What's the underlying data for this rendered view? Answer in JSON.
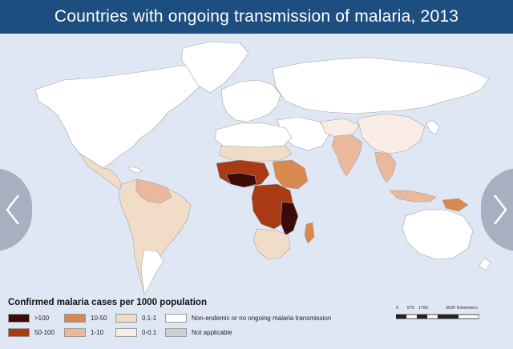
{
  "header": {
    "title": "Countries with ongoing transmission of malaria, 2013"
  },
  "nav": {
    "prev_icon": "chevron-left-icon",
    "next_icon": "chevron-right-icon"
  },
  "legend": {
    "title": "Confirmed malaria cases per 1000 population",
    "items": [
      {
        "label": ">100",
        "color": "#3d0a0a"
      },
      {
        "label": "10-50",
        "color": "#d9884f"
      },
      {
        "label": "0.1-1",
        "color": "#f1dcc8"
      },
      {
        "label": "Non-endemic or no ongoing malaria transmission",
        "color": "#ffffff"
      },
      {
        "label": "50-100",
        "color": "#a83a14"
      },
      {
        "label": "1-10",
        "color": "#eab89a"
      },
      {
        "label": "0-0.1",
        "color": "#f8ece4"
      },
      {
        "label": "Not applicable",
        "color": "#cfcfcf"
      }
    ]
  },
  "scale": {
    "ticks": [
      "0",
      "875",
      "1750",
      "3500 Kilometers"
    ]
  },
  "colors": {
    "ocean": "#dfe7f5",
    "header": "#1d4e80",
    "land": "#ffffff",
    "border": "#a0a0a0"
  }
}
